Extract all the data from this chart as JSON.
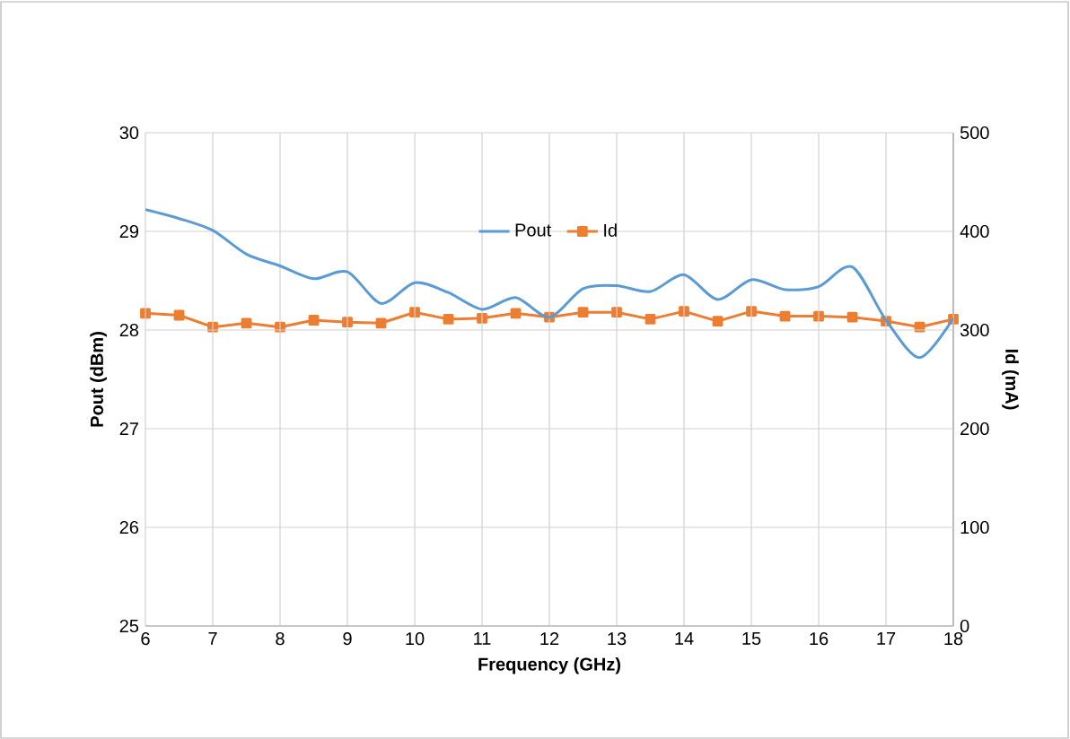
{
  "chart_data": {
    "type": "line",
    "xlabel": "Frequency (GHz)",
    "ylabel": "Pout (dBm)",
    "y2label": "Id (mA)",
    "xlim": [
      6,
      18
    ],
    "xticks": [
      6,
      7,
      8,
      9,
      10,
      11,
      12,
      13,
      14,
      15,
      16,
      17,
      18
    ],
    "ylim": [
      25,
      30
    ],
    "yticks": [
      25,
      26,
      27,
      28,
      29,
      30
    ],
    "y2lim": [
      0,
      500
    ],
    "y2ticks": [
      0,
      100,
      200,
      300,
      400,
      500
    ],
    "x": [
      6,
      6.5,
      7,
      7.5,
      8,
      8.5,
      9,
      9.5,
      10,
      10.5,
      11,
      11.5,
      12,
      12.5,
      13,
      13.5,
      14,
      14.5,
      15,
      15.5,
      16,
      16.5,
      17,
      17.5,
      18
    ],
    "grid": true,
    "legend": "top",
    "series": [
      {
        "name": "Pout",
        "color": "#5b9bd5",
        "marker": "none",
        "values": [
          29.22,
          29.13,
          29.01,
          28.77,
          28.65,
          28.52,
          28.59,
          28.27,
          28.48,
          28.38,
          28.21,
          28.33,
          28.13,
          28.42,
          28.45,
          28.39,
          28.56,
          28.31,
          28.51,
          28.41,
          28.44,
          28.64,
          28.1,
          27.72,
          28.12
        ]
      },
      {
        "name": "Id",
        "color": "#ed7d31",
        "marker": "square",
        "axis": "y2",
        "values": [
          317,
          315,
          303,
          307,
          303,
          310,
          308,
          307,
          318,
          311,
          312,
          317,
          313,
          318,
          318,
          311,
          319,
          309,
          319,
          314,
          314,
          313,
          309,
          303,
          311
        ]
      }
    ]
  }
}
